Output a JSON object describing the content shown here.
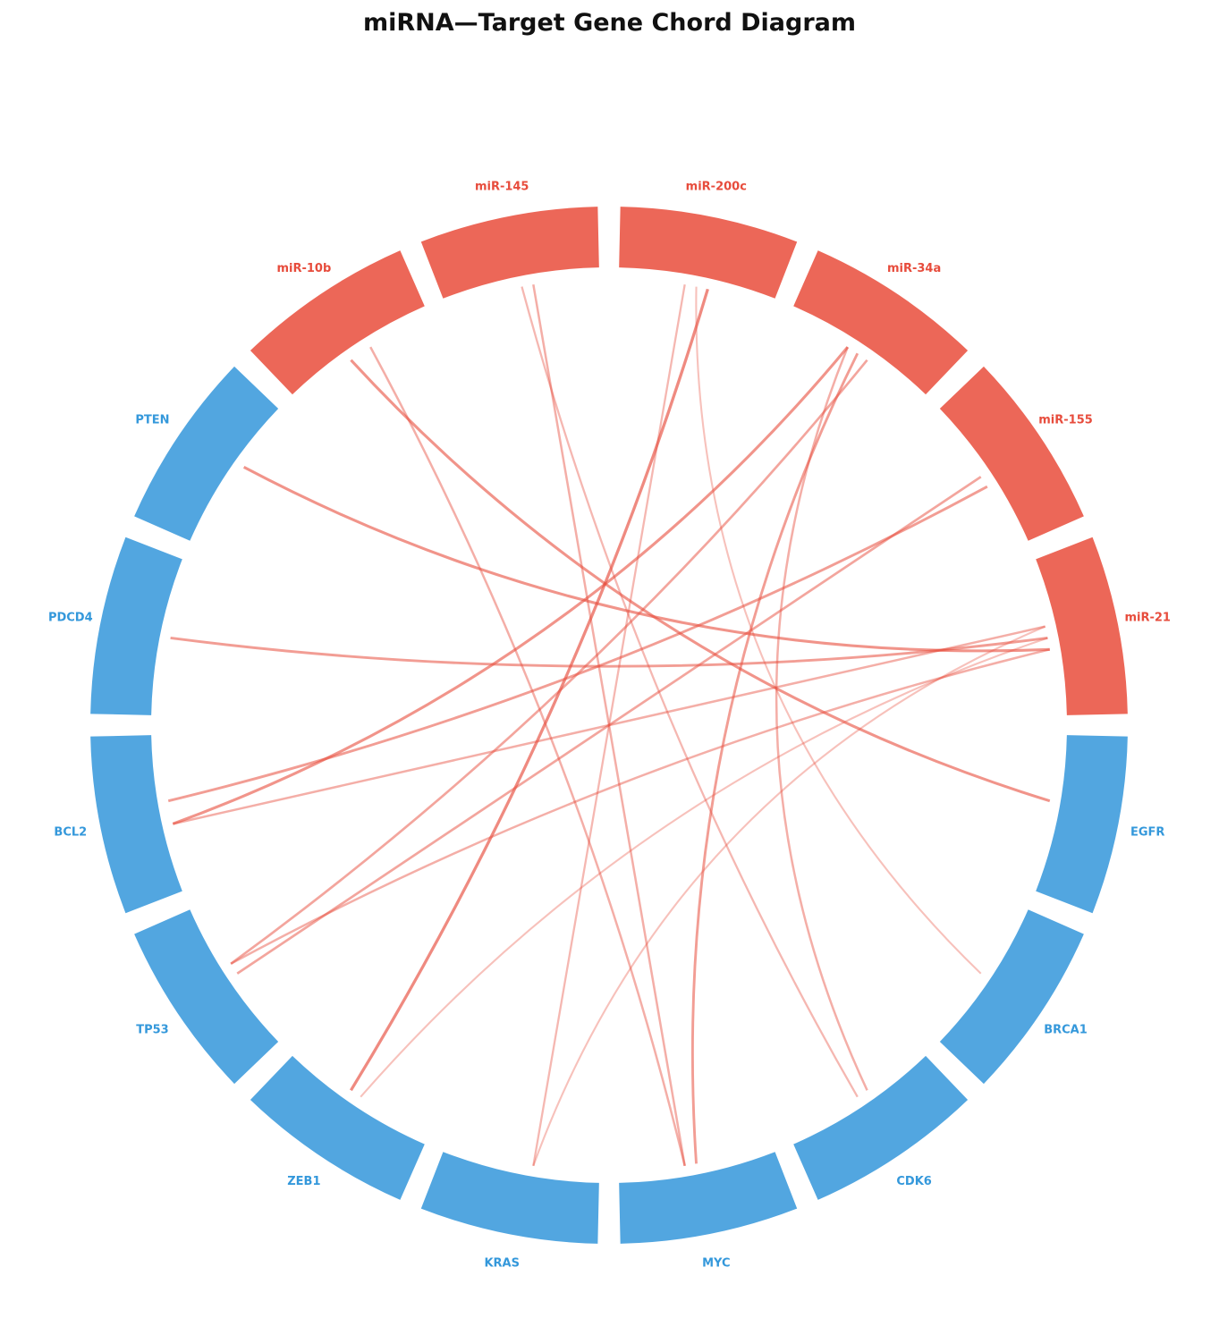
{
  "chart_data": {
    "type": "chord",
    "title": "miRNA—Target Gene Chord Diagram",
    "nodes": [
      {
        "name": "miR-21",
        "group": "miRNA"
      },
      {
        "name": "miR-155",
        "group": "miRNA"
      },
      {
        "name": "miR-34a",
        "group": "miRNA"
      },
      {
        "name": "miR-200c",
        "group": "miRNA"
      },
      {
        "name": "miR-145",
        "group": "miRNA"
      },
      {
        "name": "miR-10b",
        "group": "miRNA"
      },
      {
        "name": "PTEN",
        "group": "gene"
      },
      {
        "name": "PDCD4",
        "group": "gene"
      },
      {
        "name": "BCL2",
        "group": "gene"
      },
      {
        "name": "TP53",
        "group": "gene"
      },
      {
        "name": "ZEB1",
        "group": "gene"
      },
      {
        "name": "KRAS",
        "group": "gene"
      },
      {
        "name": "MYC",
        "group": "gene"
      },
      {
        "name": "CDK6",
        "group": "gene"
      },
      {
        "name": "BRCA1",
        "group": "gene"
      },
      {
        "name": "EGFR",
        "group": "gene"
      }
    ],
    "links": [
      {
        "source": "miR-21",
        "target": "PTEN",
        "weight": 0.8
      },
      {
        "source": "miR-21",
        "target": "PDCD4",
        "weight": 0.7
      },
      {
        "source": "miR-21",
        "target": "BCL2",
        "weight": 0.5
      },
      {
        "source": "miR-21",
        "target": "TP53",
        "weight": 0.5
      },
      {
        "source": "miR-21",
        "target": "ZEB1",
        "weight": 0.3
      },
      {
        "source": "miR-21",
        "target": "KRAS",
        "weight": 0.3
      },
      {
        "source": "miR-155",
        "target": "BCL2",
        "weight": 0.7
      },
      {
        "source": "miR-155",
        "target": "TP53",
        "weight": 0.6
      },
      {
        "source": "miR-34a",
        "target": "BCL2",
        "weight": 0.8
      },
      {
        "source": "miR-34a",
        "target": "TP53",
        "weight": 0.6
      },
      {
        "source": "miR-34a",
        "target": "MYC",
        "weight": 0.7
      },
      {
        "source": "miR-34a",
        "target": "CDK6",
        "weight": 0.5
      },
      {
        "source": "miR-200c",
        "target": "ZEB1",
        "weight": 0.9
      },
      {
        "source": "miR-200c",
        "target": "BRCA1",
        "weight": 0.3
      },
      {
        "source": "miR-200c",
        "target": "KRAS",
        "weight": 0.4
      },
      {
        "source": "miR-145",
        "target": "MYC",
        "weight": 0.5
      },
      {
        "source": "miR-145",
        "target": "CDK6",
        "weight": 0.4
      },
      {
        "source": "miR-10b",
        "target": "EGFR",
        "weight": 0.8
      },
      {
        "source": "miR-10b",
        "target": "MYC",
        "weight": 0.5
      }
    ],
    "colors": {
      "miRNA": "#ec6758",
      "miRNA_label": "#e74c3c",
      "gene": "#52a6e0",
      "gene_label": "#3498db",
      "chord": "#e74c3c"
    }
  }
}
